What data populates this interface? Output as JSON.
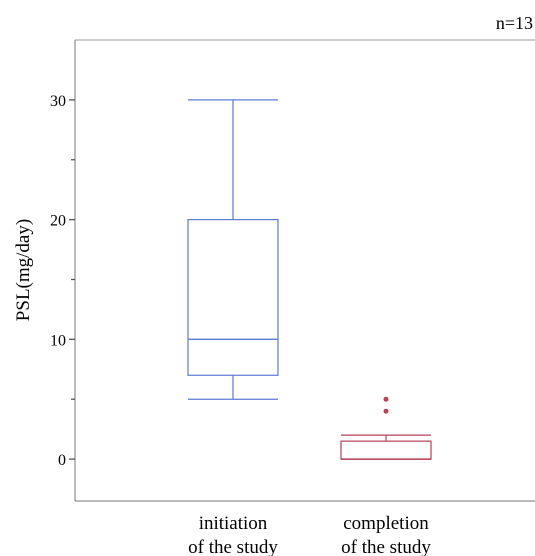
{
  "chart_data": {
    "type": "boxplot",
    "annotation": "n=13",
    "ylabel": "PSL(mg/day)",
    "xlabel": "",
    "ylim": [
      -3.5,
      35
    ],
    "yticks": [
      0,
      10,
      20,
      30
    ],
    "minor_yticks": [
      5,
      15,
      25
    ],
    "categories": [
      [
        "initiation",
        "of the study"
      ],
      [
        "completion",
        "of the study"
      ]
    ],
    "boxes": [
      {
        "category": "initiation of the study",
        "color": "#5B7BD5",
        "whisker_low": 5,
        "q1": 7,
        "median": 10,
        "q3": 20,
        "whisker_high": 30,
        "outliers": []
      },
      {
        "category": "completion of the study",
        "color": "#B5415A",
        "whisker_low": 0,
        "q1": 0,
        "median": 0,
        "q3": 1.5,
        "whisker_high": 2,
        "outliers": [
          4,
          5
        ]
      }
    ],
    "colors": {
      "axis": "#777777",
      "tick": "#555555"
    }
  }
}
